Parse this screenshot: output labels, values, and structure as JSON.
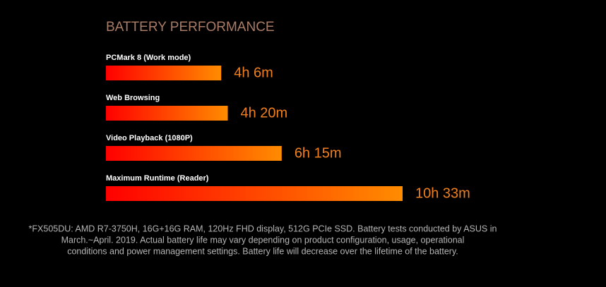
{
  "chart_data": {
    "type": "bar",
    "orientation": "horizontal",
    "title": "BATTERY PERFORMANCE",
    "categories": [
      "PCMark 8 (Work mode)",
      "Web Browsing",
      "Video Playback (1080P)",
      "Maximum Runtime (Reader)"
    ],
    "values": [
      246,
      260,
      375,
      633
    ],
    "value_labels": [
      "4h 6m",
      "4h 20m",
      "6h 15m",
      "10h 33m"
    ],
    "color": [
      "#ff0000",
      "#ff8c00"
    ],
    "footnote": [
      "*FX505DU: AMD R7-3750H, 16G+16G RAM, 120Hz FHD display, 512G PCIe SSD. Battery tests conducted by ASUS in",
      "March.~April. 2019. Actual battery life may vary depending on product configuration, usage, operational",
      "conditions and power management settings. Battery life will decrease over the lifetime of the battery."
    ]
  }
}
